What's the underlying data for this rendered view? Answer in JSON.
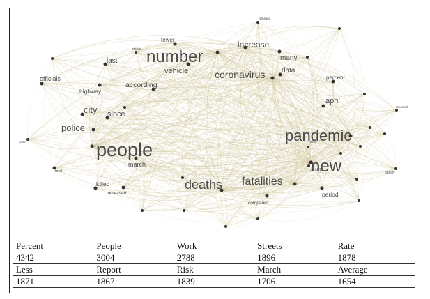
{
  "network": {
    "terms": [
      {
        "label": "people"
      },
      {
        "label": "number"
      },
      {
        "label": "pandemic"
      },
      {
        "label": "new"
      },
      {
        "label": "deaths"
      },
      {
        "label": "fatalities"
      },
      {
        "label": "coronavirus"
      },
      {
        "label": "increase"
      },
      {
        "label": "police"
      },
      {
        "label": "city"
      },
      {
        "label": "since"
      },
      {
        "label": "april"
      },
      {
        "label": "vehicle"
      },
      {
        "label": "according"
      },
      {
        "label": "data"
      },
      {
        "label": "many"
      },
      {
        "label": "last"
      },
      {
        "label": "fewer"
      },
      {
        "label": "officials"
      },
      {
        "label": "highway"
      },
      {
        "label": "percent"
      },
      {
        "label": "march"
      },
      {
        "label": "killed"
      },
      {
        "label": "period"
      },
      {
        "label": "compared"
      },
      {
        "label": "increased"
      },
      {
        "label": "total"
      },
      {
        "label": "covid-19"
      },
      {
        "label": "states"
      },
      {
        "label": "miles"
      },
      {
        "label": "fatality"
      },
      {
        "label": "reported"
      },
      {
        "label": "zone"
      },
      {
        "label": "released"
      }
    ]
  },
  "table": {
    "rows": [
      [
        "Percent",
        "People",
        "Work",
        "Streets",
        "Rate"
      ],
      [
        "4342",
        "3004",
        "2788",
        "1896",
        "1878"
      ],
      [
        "Less",
        "Report",
        "Risk",
        "March",
        "Average"
      ],
      [
        "1871",
        "1867",
        "1839",
        "1706",
        "1654"
      ]
    ]
  }
}
